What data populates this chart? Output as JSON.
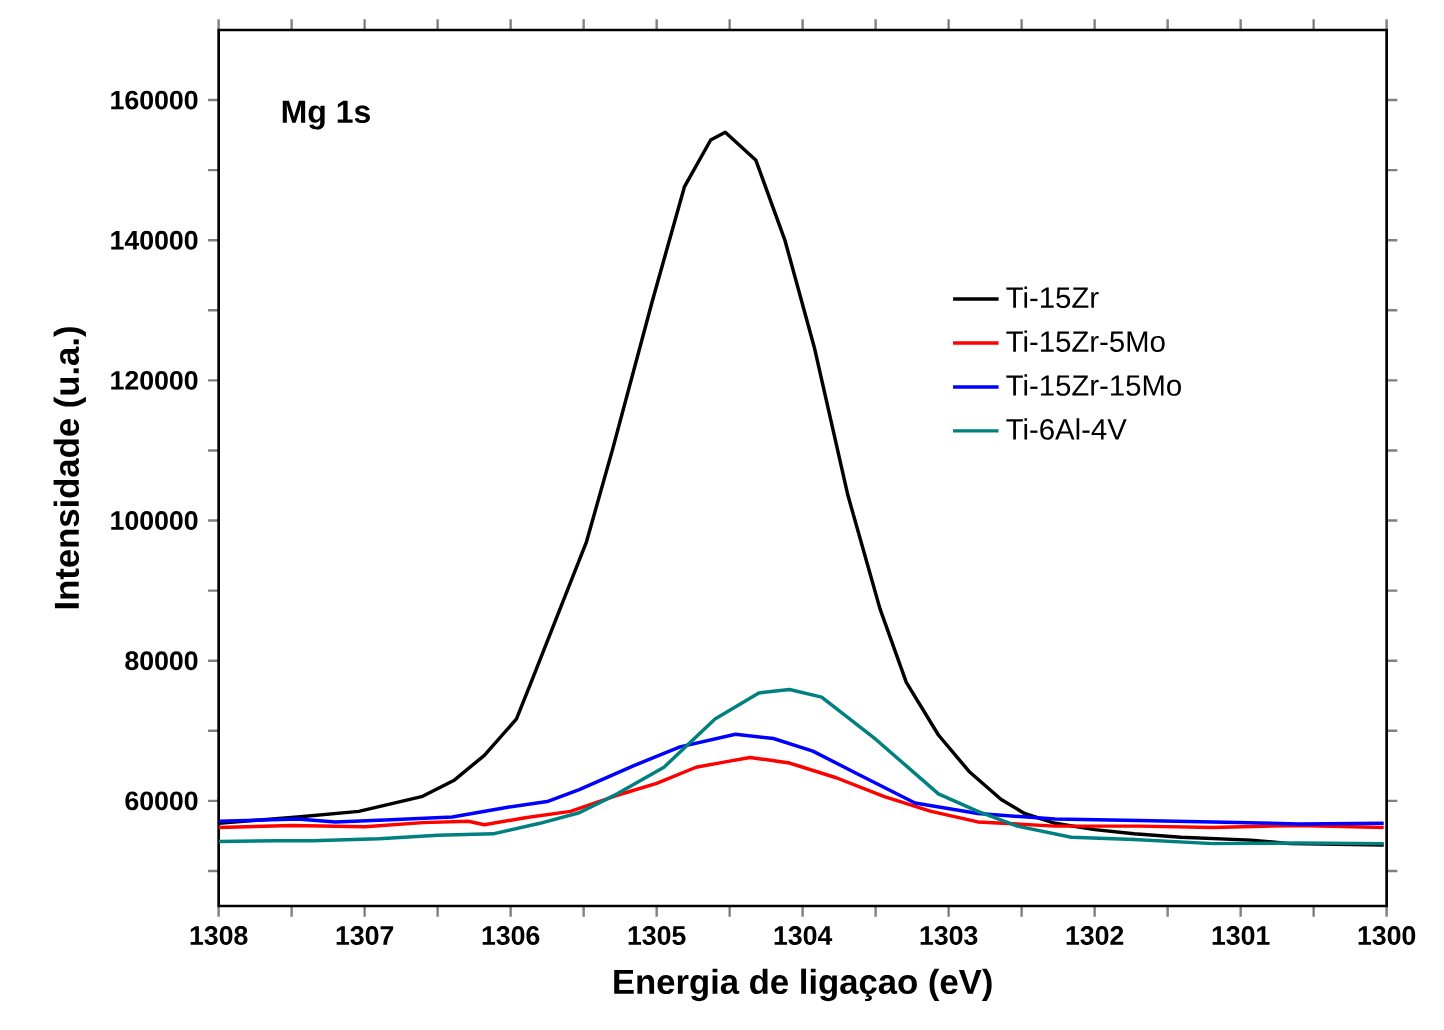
{
  "chart_data": {
    "type": "line",
    "xlabel": "Energia de ligaçao (eV)",
    "ylabel": "Intensidade (u.a.)",
    "annotations": [
      "Mg 1s"
    ],
    "xlim": [
      1308,
      1300
    ],
    "ylim": [
      45000,
      170000
    ],
    "xticks": [
      1308,
      {
        "value": 1307.5,
        "label": null
      },
      1307,
      {
        "value": 1306.5,
        "label": null
      },
      1306,
      {
        "value": 1305.5,
        "label": null
      },
      1305,
      {
        "value": 1304.5,
        "label": null
      },
      1304,
      {
        "value": 1303.5,
        "label": null
      },
      1303,
      {
        "value": 1302.5,
        "label": null
      },
      1302,
      {
        "value": 1301.5,
        "label": null
      },
      1301,
      {
        "value": 1300.5,
        "label": null
      },
      1300
    ],
    "yticks": [
      {
        "value": 50000,
        "label": null
      },
      60000,
      {
        "value": 70000,
        "label": null
      },
      80000,
      {
        "value": 90000,
        "label": null
      },
      100000,
      {
        "value": 110000,
        "label": null
      },
      120000,
      {
        "value": 130000,
        "label": null
      },
      140000,
      {
        "value": 150000,
        "label": null
      },
      160000
    ],
    "legend": "right",
    "series": [
      {
        "name": "Ti-15Zr",
        "color": "#000000",
        "x": [
          1308,
          1307.46,
          1307.04,
          1306.61,
          1306.39,
          1306.18,
          1305.96,
          1305.86,
          1305.48,
          1305.3,
          1305.03,
          1304.81,
          1304.63,
          1304.53,
          1304.32,
          1304.12,
          1303.92,
          1303.69,
          1303.47,
          1303.29,
          1303.07,
          1302.86,
          1302.64,
          1302.48,
          1302.27,
          1302.0,
          1301.73,
          1301.41,
          1300.93,
          1300.66,
          1300.02
        ],
        "values": [
          56800,
          57700,
          58500,
          60600,
          62900,
          66500,
          71700,
          76900,
          97000,
          110300,
          131300,
          147600,
          154300,
          155400,
          151400,
          139900,
          124700,
          103600,
          87400,
          76900,
          69400,
          64200,
          60200,
          58200,
          56800,
          55900,
          55300,
          54800,
          54400,
          53900,
          53700
        ]
      },
      {
        "name": "Ti-15Zr-5Mo",
        "color": "#ff0000",
        "x": [
          1308,
          1307.5,
          1307,
          1306.6,
          1306.29,
          1306.18,
          1305.9,
          1305.59,
          1305.27,
          1305.0,
          1304.73,
          1304.52,
          1304.36,
          1304.09,
          1303.77,
          1303.44,
          1303.12,
          1302.8,
          1302.27,
          1301.7,
          1301.19,
          1300.6,
          1300.02
        ],
        "values": [
          56200,
          56500,
          56300,
          56900,
          57100,
          56600,
          57600,
          58500,
          60800,
          62500,
          64800,
          65600,
          66200,
          65400,
          63300,
          60600,
          58500,
          57000,
          56400,
          56400,
          56200,
          56500,
          56200
        ]
      },
      {
        "name": "Ti-15Zr-15Mo",
        "color": "#0000ff",
        "x": [
          1308,
          1307.46,
          1307.2,
          1306.82,
          1306.4,
          1306.02,
          1305.75,
          1305.53,
          1305.16,
          1304.84,
          1304.46,
          1304.2,
          1303.93,
          1303.61,
          1303.23,
          1302.8,
          1302.27,
          1301.7,
          1301.19,
          1300.6,
          1300.02
        ],
        "values": [
          57100,
          57400,
          57000,
          57300,
          57700,
          59100,
          59900,
          61600,
          65000,
          67700,
          69500,
          68900,
          67100,
          63700,
          59700,
          58200,
          57400,
          57200,
          57000,
          56700,
          56800
        ]
      },
      {
        "name": "Ti-6Al-4V",
        "color": "#008080",
        "x": [
          1308,
          1307.6,
          1307.36,
          1306.9,
          1306.5,
          1306.12,
          1305.8,
          1305.53,
          1305.27,
          1304.95,
          1304.6,
          1304.3,
          1304.09,
          1303.87,
          1303.5,
          1303.07,
          1302.8,
          1302.53,
          1302.16,
          1301.73,
          1301.19,
          1300.6,
          1300.02
        ],
        "values": [
          54200,
          54300,
          54300,
          54600,
          55100,
          55300,
          56800,
          58300,
          61000,
          64800,
          71700,
          75400,
          75900,
          74800,
          68800,
          61000,
          58500,
          56400,
          54800,
          54500,
          53900,
          54000,
          53900
        ]
      }
    ]
  }
}
